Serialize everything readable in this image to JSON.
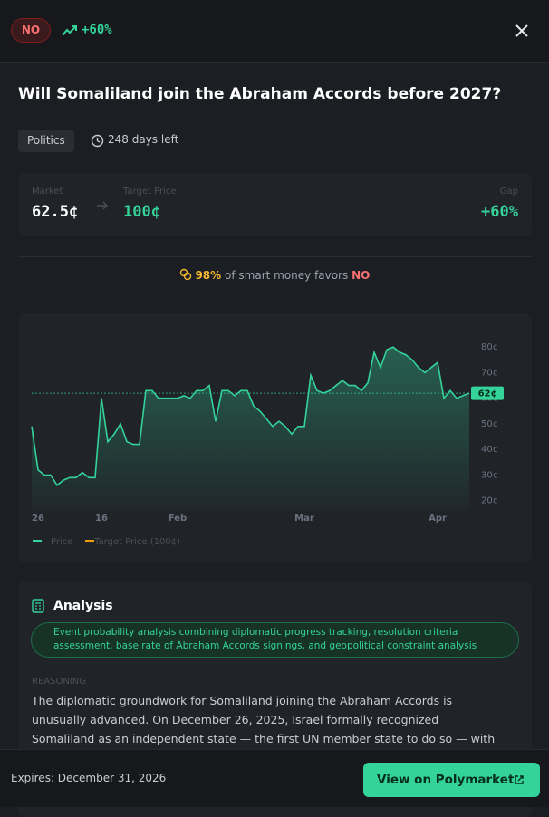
{
  "header": {
    "badge": "NO",
    "change": "+60%"
  },
  "question": "Will Somaliland join the Abraham Accords before 2027?",
  "tags": {
    "category": "Politics",
    "time_left": "248 days left"
  },
  "stats": {
    "market_label": "Market",
    "market_value": "62.5¢",
    "target_label": "Target Price",
    "target_value": "100¢",
    "gap_label": "Gap",
    "gap_value": "+60%"
  },
  "smart_money": {
    "percent": "98%",
    "text": "of smart money favors",
    "side": "NO"
  },
  "chart_data": {
    "type": "line",
    "categories": [
      null,
      "26",
      null,
      null,
      null,
      null,
      null,
      null,
      null,
      null,
      null,
      "16",
      null,
      null,
      null,
      null,
      null,
      null,
      null,
      null,
      null,
      null,
      null,
      "Feb",
      null,
      null,
      null,
      null,
      null,
      null,
      null,
      null,
      null,
      null,
      null,
      null,
      null,
      null,
      null,
      null,
      null,
      null,
      null,
      "Mar",
      null,
      null,
      null,
      null,
      null,
      null,
      null,
      null,
      null,
      null,
      null,
      null,
      null,
      null,
      null,
      null,
      null,
      null,
      null,
      null,
      "Apr",
      null,
      null,
      null,
      null,
      null
    ],
    "series": [
      {
        "name": "Price",
        "color": "#34d399",
        "values": [
          49,
          32,
          30,
          30,
          26,
          28,
          29,
          29,
          31,
          29,
          29,
          60,
          43,
          46,
          50,
          43,
          42,
          42,
          63,
          63,
          60,
          60,
          60,
          60,
          61,
          60,
          63,
          63,
          65,
          51,
          63,
          63,
          61,
          63,
          63,
          57,
          55,
          52,
          49,
          51,
          49,
          46,
          49,
          49,
          69,
          63,
          62,
          63,
          65,
          67,
          65,
          65,
          63,
          66,
          78,
          72,
          79,
          80,
          78,
          77,
          75,
          72,
          70,
          72,
          74,
          60,
          63,
          60,
          61,
          62
        ]
      }
    ],
    "target_legend": {
      "name": "Target Price (100¢)",
      "color": "#f59e0b"
    },
    "current": {
      "value": 62,
      "label": "62¢"
    },
    "ylim": [
      16,
      90
    ],
    "yticks": [
      {
        "value": 20,
        "label": "20¢"
      },
      {
        "value": 30,
        "label": "30¢"
      },
      {
        "value": 40,
        "label": "40¢"
      },
      {
        "value": 50,
        "label": "50¢"
      },
      {
        "value": 60,
        "label": "60¢"
      },
      {
        "value": 70,
        "label": "70¢"
      },
      {
        "value": 80,
        "label": "80¢"
      }
    ],
    "grid": false
  },
  "analysis": {
    "title": "Analysis",
    "method": "Event probability analysis combining diplomatic progress tracking, resolution criteria assessment, base rate of Abraham Accords signings, and geopolitical constraint analysis",
    "reasoning_label": "REASONING",
    "reasoning": "The diplomatic groundwork for Somaliland joining the Abraham Accords is unusually advanced. On December 26, 2025, Israel formally recognized Somaliland as an independent state — the first UN member state to do so — with Netanyahu explicitly"
  },
  "footer": {
    "expires": "Expires: December 31, 2026",
    "button": "View on Polymarket"
  }
}
